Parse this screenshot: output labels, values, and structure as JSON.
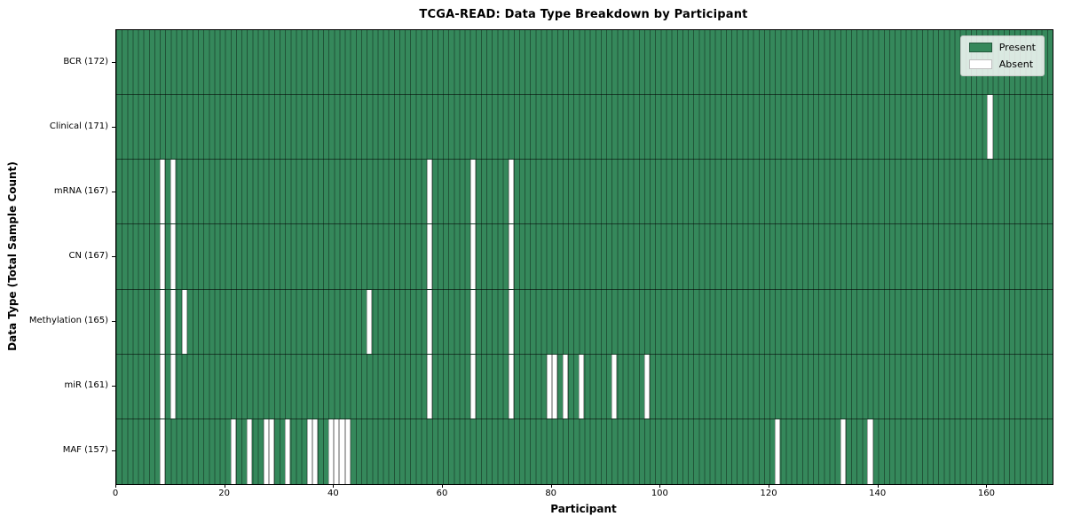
{
  "chart_data": {
    "type": "heatmap",
    "title": "TCGA-READ: Data Type Breakdown by Participant",
    "xlabel": "Participant",
    "ylabel": "Data Type (Total Sample Count)",
    "x_range": [
      0,
      172
    ],
    "n_participants": 172,
    "x_ticks": [
      0,
      20,
      40,
      60,
      80,
      100,
      120,
      140,
      160
    ],
    "grid": "cell-edges",
    "legend_position": "upper-right",
    "colors": {
      "present": "#35885B",
      "absent": "#ffffff"
    },
    "legend": [
      {
        "label": "Present",
        "color": "#35885B"
      },
      {
        "label": "Absent",
        "color": "#ffffff"
      }
    ],
    "rows": [
      {
        "label": "BCR (172)",
        "data_type": "BCR",
        "count": 172,
        "absent_participants": []
      },
      {
        "label": "Clinical (171)",
        "data_type": "Clinical",
        "count": 171,
        "absent_participants": [
          160
        ]
      },
      {
        "label": "mRNA (167)",
        "data_type": "mRNA",
        "count": 167,
        "absent_participants": [
          8,
          10,
          57,
          65,
          72
        ]
      },
      {
        "label": "CN (167)",
        "data_type": "CN",
        "count": 167,
        "absent_participants": [
          8,
          10,
          57,
          65,
          72
        ]
      },
      {
        "label": "Methylation (165)",
        "data_type": "Methylation",
        "count": 165,
        "absent_participants": [
          8,
          10,
          12,
          46,
          57,
          65,
          72
        ]
      },
      {
        "label": "miR (161)",
        "data_type": "miR",
        "count": 161,
        "absent_participants": [
          8,
          10,
          57,
          65,
          72,
          79,
          80,
          82,
          85,
          91,
          97
        ]
      },
      {
        "label": "MAF (157)",
        "data_type": "MAF",
        "count": 157,
        "absent_participants": [
          8,
          21,
          24,
          27,
          28,
          31,
          35,
          36,
          39,
          40,
          41,
          42,
          121,
          133,
          138
        ]
      }
    ]
  }
}
